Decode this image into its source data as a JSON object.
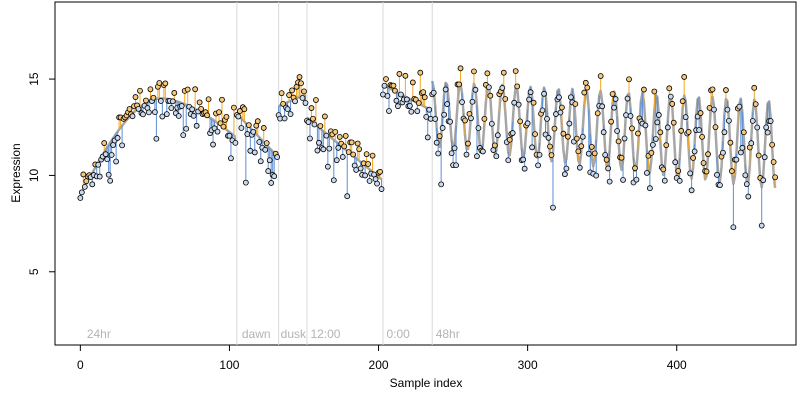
{
  "chart_data": {
    "type": "scatter",
    "title": "",
    "xlabel": "Sample index",
    "ylabel": "Expression",
    "xlim": [
      -17,
      480
    ],
    "ylim": [
      1.2,
      19.0
    ],
    "x_ticks": [
      0,
      100,
      200,
      300,
      400
    ],
    "y_ticks": [
      5,
      10,
      15
    ],
    "grid": false,
    "legend": "none",
    "colors": {
      "fitted_line": "#a6a6a6",
      "residual_positive": "#f5a623",
      "residual_negative": "#5b8fd6",
      "boundary": "#d9d9d9",
      "point_stroke": "#000000",
      "label": "#b3b3b3"
    },
    "boundaries": [
      105,
      133,
      152,
      203,
      236
    ],
    "phase_labels": [
      {
        "x": 3,
        "text": "24hr"
      },
      {
        "x": 107,
        "text": "dawn"
      },
      {
        "x": 133,
        "text": "dusk"
      },
      {
        "x": 153,
        "text": "12:00"
      },
      {
        "x": 204,
        "text": "0:00"
      },
      {
        "x": 237,
        "text": "48hr"
      }
    ],
    "segments": [
      {
        "type": "arc",
        "x0": 0,
        "x1": 104,
        "peak_x": 55,
        "y_start": 9.0,
        "y_peak": 14.0,
        "y_end": 12.0
      },
      {
        "type": "ramp",
        "x0": 105,
        "x1": 132,
        "y_start": 13.2,
        "y_end": 11.0
      },
      {
        "type": "ramp",
        "x0": 133,
        "x1": 151,
        "y_start": 13.6,
        "y_end": 14.2
      },
      {
        "type": "ramp",
        "x0": 152,
        "x1": 202,
        "y_start": 13.0,
        "y_end": 9.8
      },
      {
        "type": "ramp",
        "x0": 203,
        "x1": 235,
        "y_start": 14.7,
        "y_end": 13.4
      },
      {
        "type": "oscillation",
        "x0": 236,
        "x1": 466,
        "period": 9.4,
        "y_mid_start": 13.2,
        "y_mid_end": 11.6,
        "amp_start": 1.7,
        "amp_end": 2.3
      }
    ],
    "residual_sd": 0.55
  }
}
